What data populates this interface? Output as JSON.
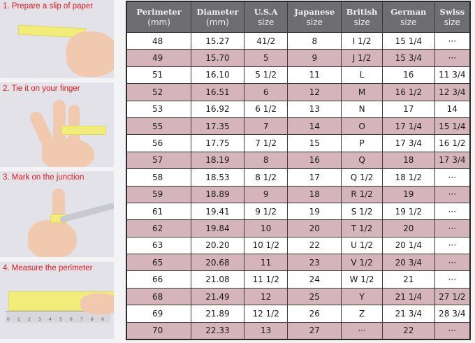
{
  "steps": [
    {
      "label": "1. Prepare a slip of paper"
    },
    {
      "label": "2. Tie it on your finger"
    },
    {
      "label": "3. Mark on the junction"
    },
    {
      "label": "4. Measure the perimeter"
    }
  ],
  "ruler_ticks": [
    "0",
    "1",
    "2",
    "3",
    "4",
    "5",
    "6",
    "7",
    "8",
    "9"
  ],
  "colors": {
    "step_text": "#e01a22",
    "header_bg": "#6d6d72",
    "row_pink": "#d5b5bb",
    "row_white": "#ffffff"
  },
  "table": {
    "headers": [
      {
        "title": "Perimeter",
        "sub": "(mm)"
      },
      {
        "title": "Diameter",
        "sub": "(mm)"
      },
      {
        "title": "U.S.A",
        "sub": "size"
      },
      {
        "title": "Japanese",
        "sub": "size"
      },
      {
        "title": "British",
        "sub": "size"
      },
      {
        "title": "German",
        "sub": "size"
      },
      {
        "title": "Swiss",
        "sub": "size"
      }
    ],
    "rows": [
      [
        "48",
        "15.27",
        "41/2",
        "8",
        "I 1/2",
        "15 1/4",
        "···"
      ],
      [
        "49",
        "15.70",
        "5",
        "9",
        "J 1/2",
        "15 3/4",
        "···"
      ],
      [
        "51",
        "16.10",
        "5 1/2",
        "11",
        "L",
        "16",
        "11 3/4"
      ],
      [
        "52",
        "16.51",
        "6",
        "12",
        "M",
        "16 1/2",
        "12 3/4"
      ],
      [
        "53",
        "16.92",
        "6 1/2",
        "13",
        "N",
        "17",
        "14"
      ],
      [
        "55",
        "17.35",
        "7",
        "14",
        "O",
        "17 1/4",
        "15 1/4"
      ],
      [
        "56",
        "17.75",
        "7 1/2",
        "15",
        "P",
        "17 3/4",
        "16 1/2"
      ],
      [
        "57",
        "18.19",
        "8",
        "16",
        "Q",
        "18",
        "17 3/4"
      ],
      [
        "58",
        "18.53",
        "8 1/2",
        "17",
        "Q  1/2",
        "18 1/2",
        "···"
      ],
      [
        "59",
        "18.89",
        "9",
        "18",
        "R 1/2",
        "19",
        "···"
      ],
      [
        "61",
        "19.41",
        "9 1/2",
        "19",
        "S 1/2",
        "19 1/2",
        "···"
      ],
      [
        "62",
        "19.84",
        "10",
        "20",
        "T 1/2",
        "20",
        "···"
      ],
      [
        "63",
        "20.20",
        "10 1/2",
        "22",
        "U 1/2",
        "20 1/4",
        "···"
      ],
      [
        "65",
        "20.68",
        "11",
        "23",
        "V 1/2",
        "20 3/4",
        "···"
      ],
      [
        "66",
        "21.08",
        "11 1/2",
        "24",
        "W 1/2",
        "21",
        "···"
      ],
      [
        "68",
        "21.49",
        "12",
        "25",
        "Y",
        "21 1/4",
        "27 1/2"
      ],
      [
        "69",
        "21.89",
        "12 1/2",
        "26",
        "Z",
        "21 3/4",
        "28 3/4"
      ],
      [
        "70",
        "22.33",
        "13",
        "27",
        "···",
        "22",
        "···"
      ]
    ]
  }
}
